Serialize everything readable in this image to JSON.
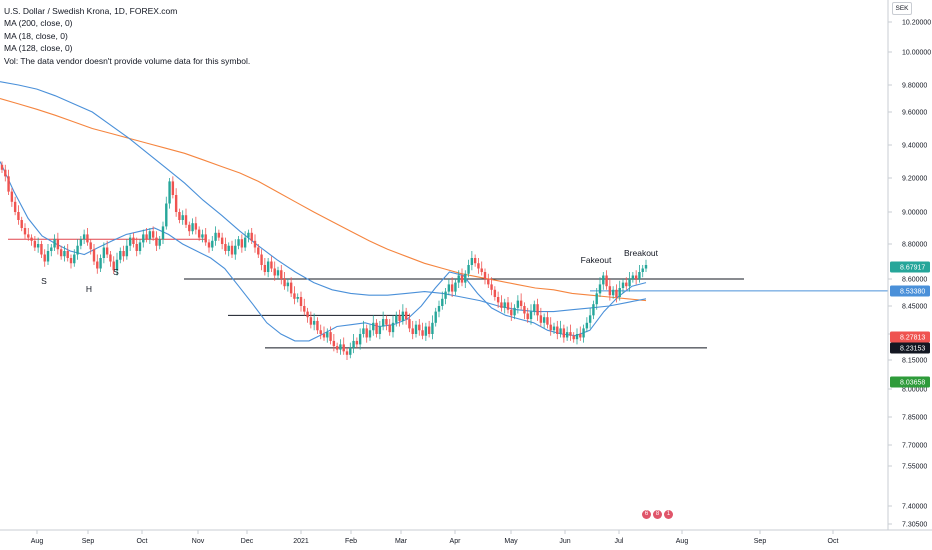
{
  "header": {
    "symbol_title": "U.S. Dollar / Swedish Krona, 1D, FOREX.com",
    "indicators": [
      "MA (200, close, 0)",
      "MA (18, close, 0)",
      "MA (128, close, 0)"
    ],
    "volume_note": "Vol: The data vendor doesn't provide volume data for this symbol.",
    "currency": "SEK"
  },
  "events": [
    "6",
    "8",
    "1"
  ],
  "chart_data": {
    "type": "candlestick",
    "ylim": [
      7.28,
      10.26
    ],
    "y_ticks": [
      "10.20000",
      "10.00000",
      "9.80000",
      "9.60000",
      "9.40000",
      "9.20000",
      "9.00000",
      "8.80000",
      "8.60000",
      "8.45000",
      "8.30000",
      "8.15000",
      "8.00000",
      "7.85000",
      "7.70000",
      "7.55000",
      "7.40000",
      "7.30500"
    ],
    "x_ticks": [
      "Aug",
      "Sep",
      "Oct",
      "Nov",
      "Dec",
      "2021",
      "Feb",
      "Mar",
      "Apr",
      "May",
      "Jun",
      "Jul",
      "Aug",
      "Sep",
      "Oct"
    ],
    "price_tags": [
      {
        "value": "8.67917",
        "color": "#26a69a"
      },
      {
        "value": "8.53380",
        "color": "#4a90d9"
      },
      {
        "value": "8.27813",
        "color": "#ef5350"
      },
      {
        "value": "8.23153",
        "color": "#131722"
      },
      {
        "value": "8.03658",
        "color": "#2e9b3a"
      }
    ],
    "ohlc_closes": [
      9.25,
      9.21,
      9.12,
      9.06,
      9.0,
      8.95,
      8.9,
      8.86,
      8.84,
      8.82,
      8.78,
      8.8,
      8.74,
      8.7,
      8.76,
      8.78,
      8.83,
      8.77,
      8.73,
      8.76,
      8.72,
      8.69,
      8.74,
      8.79,
      8.83,
      8.86,
      8.81,
      8.77,
      8.7,
      8.66,
      8.72,
      8.78,
      8.74,
      8.7,
      8.65,
      8.71,
      8.76,
      8.73,
      8.79,
      8.84,
      8.8,
      8.76,
      8.81,
      8.86,
      8.83,
      8.88,
      8.84,
      8.79,
      8.83,
      8.91,
      9.05,
      9.18,
      9.1,
      9.0,
      8.95,
      8.98,
      8.92,
      8.88,
      8.93,
      8.89,
      8.84,
      8.86,
      8.81,
      8.78,
      8.82,
      8.87,
      8.84,
      8.8,
      8.76,
      8.79,
      8.74,
      8.79,
      8.83,
      8.78,
      8.84,
      8.87,
      8.82,
      8.78,
      8.74,
      8.68,
      8.64,
      8.7,
      8.66,
      8.62,
      8.65,
      8.6,
      8.56,
      8.58,
      8.52,
      8.49,
      8.5,
      8.45,
      8.42,
      8.39,
      8.35,
      8.37,
      8.32,
      8.3,
      8.28,
      8.31,
      8.26,
      8.23,
      8.21,
      8.24,
      8.2,
      8.18,
      8.22,
      8.26,
      8.24,
      8.3,
      8.33,
      8.28,
      8.32,
      8.36,
      8.3,
      8.34,
      8.38,
      8.35,
      8.31,
      8.36,
      8.4,
      8.37,
      8.42,
      8.38,
      8.33,
      8.3,
      8.35,
      8.32,
      8.29,
      8.34,
      8.3,
      8.36,
      8.42,
      8.45,
      8.49,
      8.53,
      8.57,
      8.53,
      8.58,
      8.62,
      8.58,
      8.63,
      8.68,
      8.72,
      8.69,
      8.66,
      8.64,
      8.6,
      8.57,
      8.54,
      8.5,
      8.47,
      8.44,
      8.47,
      8.43,
      8.4,
      8.44,
      8.48,
      8.45,
      8.41,
      8.38,
      8.42,
      8.46,
      8.4,
      8.36,
      8.39,
      8.35,
      8.32,
      8.34,
      8.3,
      8.33,
      8.28,
      8.31,
      8.29,
      8.27,
      8.3,
      8.28,
      8.33,
      8.36,
      8.4,
      8.46,
      8.52,
      8.57,
      8.62,
      8.56,
      8.51,
      8.54,
      8.5,
      8.55,
      8.58,
      8.56,
      8.6,
      8.62,
      8.6,
      8.64,
      8.66,
      8.68
    ],
    "moving_averages": [
      {
        "name": "MA (200, close, 0)",
        "color": "#f5853f",
        "values": [
          9.7,
          9.66,
          9.62,
          9.58,
          9.54,
          9.5,
          9.47,
          9.44,
          9.41,
          9.38,
          9.35,
          9.31,
          9.27,
          9.23,
          9.18,
          9.12,
          9.06,
          9.0,
          8.94,
          8.88,
          8.82,
          8.77,
          8.73,
          8.69,
          8.66,
          8.63,
          8.61,
          8.59,
          8.57,
          8.55,
          8.54,
          8.52,
          8.51,
          8.5,
          8.49,
          8.48
        ]
      },
      {
        "name": "MA (128, close, 0)",
        "color": "#4a90d9",
        "values": [
          9.82,
          9.8,
          9.77,
          9.72,
          9.66,
          9.6,
          9.52,
          9.44,
          9.35,
          9.26,
          9.17,
          9.07,
          8.98,
          8.88,
          8.79,
          8.71,
          8.64,
          8.58,
          8.54,
          8.52,
          8.51,
          8.51,
          8.52,
          8.53,
          8.52,
          8.5,
          8.48,
          8.45,
          8.43,
          8.42,
          8.42,
          8.43,
          8.44,
          8.45,
          8.47,
          8.49
        ]
      },
      {
        "name": "MA (18, close, 0)",
        "color": "#4a90d9",
        "values": [
          9.3,
          9.12,
          8.96,
          8.85,
          8.8,
          8.76,
          8.74,
          8.78,
          8.82,
          8.86,
          8.88,
          8.9,
          8.86,
          8.8,
          8.76,
          8.72,
          8.66,
          8.56,
          8.46,
          8.36,
          8.3,
          8.26,
          8.26,
          8.3,
          8.34,
          8.35,
          8.36,
          8.34,
          8.35,
          8.38,
          8.45,
          8.55,
          8.64,
          8.62,
          8.52,
          8.44,
          8.4,
          8.38,
          8.36,
          8.32,
          8.3,
          8.29,
          8.32,
          8.42,
          8.5,
          8.56,
          8.58
        ]
      }
    ],
    "horizontal_lines": [
      {
        "y": 8.83
      },
      {
        "y": 8.6
      },
      {
        "y": 8.4
      },
      {
        "y": 8.22
      },
      {
        "y": 8.534
      }
    ],
    "annotations": [
      "S",
      "H",
      "S",
      "Fakeout",
      "Breakout"
    ]
  }
}
